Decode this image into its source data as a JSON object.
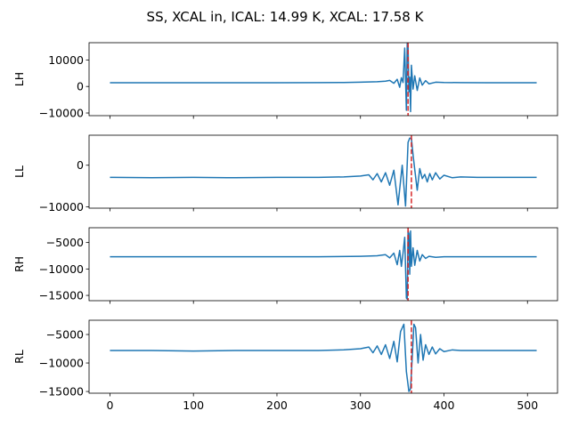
{
  "figure": {
    "title": "SS, XCAL in, ICAL: 14.99 K, XCAL: 17.58 K"
  },
  "chart_data": [
    {
      "type": "line",
      "ylabel": "LH",
      "baseline": 1400,
      "marker_x": 357,
      "xlim": [
        -25,
        536
      ],
      "ylim": [
        -11000,
        16500
      ],
      "yticks": [
        -10000,
        0,
        10000
      ],
      "ytick_labels": [
        "−10000",
        "0",
        "10000"
      ],
      "show_xtick_labels": false,
      "series": [
        {
          "color": "#1f77b4",
          "x": [
            0,
            50,
            100,
            150,
            200,
            250,
            280,
            300,
            310,
            320,
            330,
            335,
            340,
            344,
            347,
            349,
            351,
            353,
            355,
            356,
            357,
            358,
            359,
            360,
            361,
            363,
            365,
            368,
            371,
            374,
            378,
            382,
            390,
            400,
            420,
            450,
            480,
            511
          ],
          "y": [
            1400,
            1400,
            1400,
            1400,
            1400,
            1450,
            1500,
            1600,
            1700,
            1800,
            2000,
            2300,
            1200,
            2700,
            -300,
            3300,
            1500,
            14500,
            -9000,
            16200,
            15500,
            -2000,
            3500,
            -9500,
            8000,
            -1000,
            4000,
            -1500,
            3200,
            500,
            2200,
            1000,
            1600,
            1500,
            1450,
            1400,
            1400,
            1400
          ]
        }
      ]
    },
    {
      "type": "line",
      "ylabel": "LL",
      "baseline": -2900,
      "marker_x": 361,
      "xlim": [
        -25,
        536
      ],
      "ylim": [
        -10300,
        7200
      ],
      "yticks": [
        -10000,
        0
      ],
      "ytick_labels": [
        "−10000",
        "0"
      ],
      "show_xtick_labels": false,
      "series": [
        {
          "color": "#1f77b4",
          "x": [
            0,
            50,
            100,
            150,
            200,
            250,
            280,
            300,
            310,
            315,
            320,
            325,
            330,
            335,
            340,
            345,
            350,
            354,
            357,
            359,
            361,
            363,
            365,
            368,
            371,
            374,
            377,
            380,
            383,
            386,
            390,
            395,
            400,
            410,
            420,
            440,
            470,
            511
          ],
          "y": [
            -2900,
            -3000,
            -2900,
            -3000,
            -2900,
            -2900,
            -2800,
            -2600,
            -2300,
            -3500,
            -2000,
            -4000,
            -1800,
            -4800,
            -1200,
            -9500,
            0,
            -9800,
            5500,
            6500,
            6400,
            2500,
            -1000,
            -6000,
            -800,
            -3200,
            -2200,
            -4000,
            -2000,
            -3500,
            -1800,
            -3300,
            -2400,
            -3000,
            -2800,
            -2900,
            -2900,
            -2900
          ]
        }
      ]
    },
    {
      "type": "line",
      "ylabel": "RH",
      "baseline": -7700,
      "marker_x": 357,
      "xlim": [
        -25,
        536
      ],
      "ylim": [
        -16000,
        -2200
      ],
      "yticks": [
        -15000,
        -10000,
        -5000
      ],
      "ytick_labels": [
        "−15000",
        "−10000",
        "−5000"
      ],
      "show_xtick_labels": false,
      "series": [
        {
          "color": "#1f77b4",
          "x": [
            0,
            50,
            100,
            150,
            200,
            250,
            300,
            320,
            330,
            335,
            340,
            344,
            347,
            349,
            351,
            353,
            355,
            356,
            357,
            358,
            359,
            360,
            361,
            363,
            365,
            368,
            371,
            374,
            378,
            382,
            390,
            400,
            420,
            450,
            480,
            511
          ],
          "y": [
            -7700,
            -7700,
            -7700,
            -7700,
            -7700,
            -7700,
            -7600,
            -7500,
            -7300,
            -7900,
            -7000,
            -9200,
            -6500,
            -9500,
            -7000,
            -4000,
            -15500,
            -15700,
            -2800,
            -3300,
            -11000,
            -2800,
            -9500,
            -6000,
            -9300,
            -6500,
            -8500,
            -7300,
            -8000,
            -7600,
            -7800,
            -7700,
            -7700,
            -7700,
            -7700,
            -7700
          ]
        }
      ]
    },
    {
      "type": "line",
      "ylabel": "RL",
      "baseline": -7800,
      "marker_x": 361,
      "xlim": [
        -25,
        536
      ],
      "ylim": [
        -15300,
        -2500
      ],
      "yticks": [
        -15000,
        -10000,
        -5000
      ],
      "ytick_labels": [
        "−15000",
        "−10000",
        "−5000"
      ],
      "show_xtick_labels": true,
      "xticks": [
        0,
        100,
        200,
        300,
        400,
        500
      ],
      "xtick_labels": [
        "0",
        "100",
        "200",
        "300",
        "400",
        "500"
      ],
      "series": [
        {
          "color": "#1f77b4",
          "x": [
            0,
            50,
            100,
            150,
            200,
            250,
            280,
            300,
            310,
            315,
            320,
            325,
            330,
            335,
            340,
            344,
            348,
            352,
            355,
            358,
            360,
            362,
            364,
            366,
            369,
            372,
            375,
            378,
            382,
            386,
            390,
            395,
            400,
            410,
            420,
            440,
            470,
            511
          ],
          "y": [
            -7800,
            -7800,
            -7900,
            -7800,
            -7800,
            -7800,
            -7700,
            -7500,
            -7200,
            -8200,
            -7000,
            -8500,
            -6800,
            -9200,
            -6200,
            -9800,
            -4500,
            -3200,
            -11500,
            -15000,
            -14500,
            -9000,
            -3200,
            -3800,
            -10000,
            -5000,
            -9500,
            -6800,
            -8500,
            -7200,
            -8400,
            -7500,
            -8000,
            -7700,
            -7800,
            -7800,
            -7800,
            -7800
          ]
        }
      ]
    }
  ]
}
